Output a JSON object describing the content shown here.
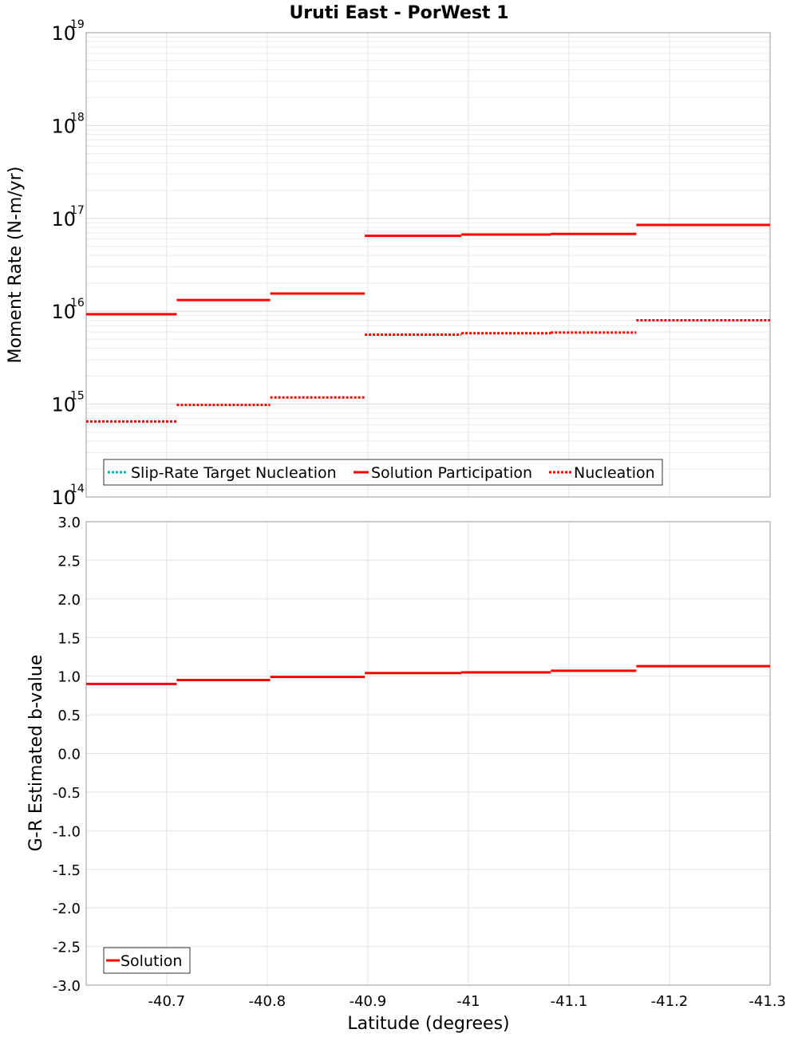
{
  "title": "Uruti East - PorWest 1",
  "colors": {
    "solution": "#ff0000",
    "target": "#00b5c8",
    "grid": "#e4e4e4",
    "frame": "#999999"
  },
  "chart_data": [
    {
      "type": "line",
      "name": "moment-rate",
      "ylabel": "Moment Rate (N-m/yr)",
      "yscale": "log",
      "ylim": [
        100000000000000.0,
        1e+19
      ],
      "yticks": [
        {
          "base": "10",
          "exp": "19",
          "value": 1e+19
        },
        {
          "base": "10",
          "exp": "18",
          "value": 1e+18
        },
        {
          "base": "10",
          "exp": "17",
          "value": 1e+17
        },
        {
          "base": "10",
          "exp": "16",
          "value": 1e+16
        },
        {
          "base": "10",
          "exp": "15",
          "value": 1000000000000000.0
        },
        {
          "base": "10",
          "exp": "14",
          "value": 100000000000000.0
        }
      ],
      "xlim": [
        -40.62,
        -41.3
      ],
      "bin_edges": [
        -40.62,
        -40.71,
        -40.803,
        -40.897,
        -40.993,
        -41.082,
        -41.167,
        -41.3
      ],
      "series": [
        {
          "name": "Slip-Rate Target Nucleation",
          "style": "dotted",
          "color": "#00b5c8",
          "values": []
        },
        {
          "name": "Solution Participation",
          "style": "solid",
          "color": "#ff0000",
          "values": [
            9300000000000000.0,
            1.32e+16,
            1.55e+16,
            6.5e+16,
            6.7e+16,
            6.8e+16,
            8.5e+16
          ]
        },
        {
          "name": "Nucleation",
          "style": "dotted",
          "color": "#ff0000",
          "values": [
            650000000000000.0,
            980000000000000.0,
            1180000000000000.0,
            5600000000000000.0,
            5800000000000000.0,
            5900000000000000.0,
            8000000000000000.0
          ]
        }
      ],
      "legend": [
        {
          "label": "Slip-Rate Target Nucleation",
          "style": "dotted",
          "color": "#00b5c8"
        },
        {
          "label": "Solution Participation",
          "style": "solid",
          "color": "#ff0000"
        },
        {
          "label": "Nucleation",
          "style": "dotted",
          "color": "#ff0000"
        }
      ],
      "legend_position": "bottom-left"
    },
    {
      "type": "line",
      "name": "b-value",
      "ylabel": "G-R Estimated b-value",
      "xlabel": "Latitude (degrees)",
      "ylim": [
        -3.0,
        3.0
      ],
      "yticks": [
        "3.0",
        "2.5",
        "2.0",
        "1.5",
        "1.0",
        "0.5",
        "0.0",
        "-0.5",
        "-1.0",
        "-1.5",
        "-2.0",
        "-2.5",
        "-3.0"
      ],
      "xlim": [
        -40.62,
        -41.3
      ],
      "xticks": [
        "-40.7",
        "-40.8",
        "-40.9",
        "-41",
        "-41.1",
        "-41.2",
        "-41.3"
      ],
      "bin_edges": [
        -40.62,
        -40.71,
        -40.803,
        -40.897,
        -40.993,
        -41.082,
        -41.167,
        -41.3
      ],
      "series": [
        {
          "name": "Solution",
          "style": "solid",
          "color": "#ff0000",
          "values": [
            0.9,
            0.95,
            0.99,
            1.04,
            1.05,
            1.07,
            1.13
          ]
        }
      ],
      "legend": [
        {
          "label": "Solution",
          "style": "solid",
          "color": "#ff0000"
        }
      ],
      "legend_position": "bottom-left"
    }
  ]
}
